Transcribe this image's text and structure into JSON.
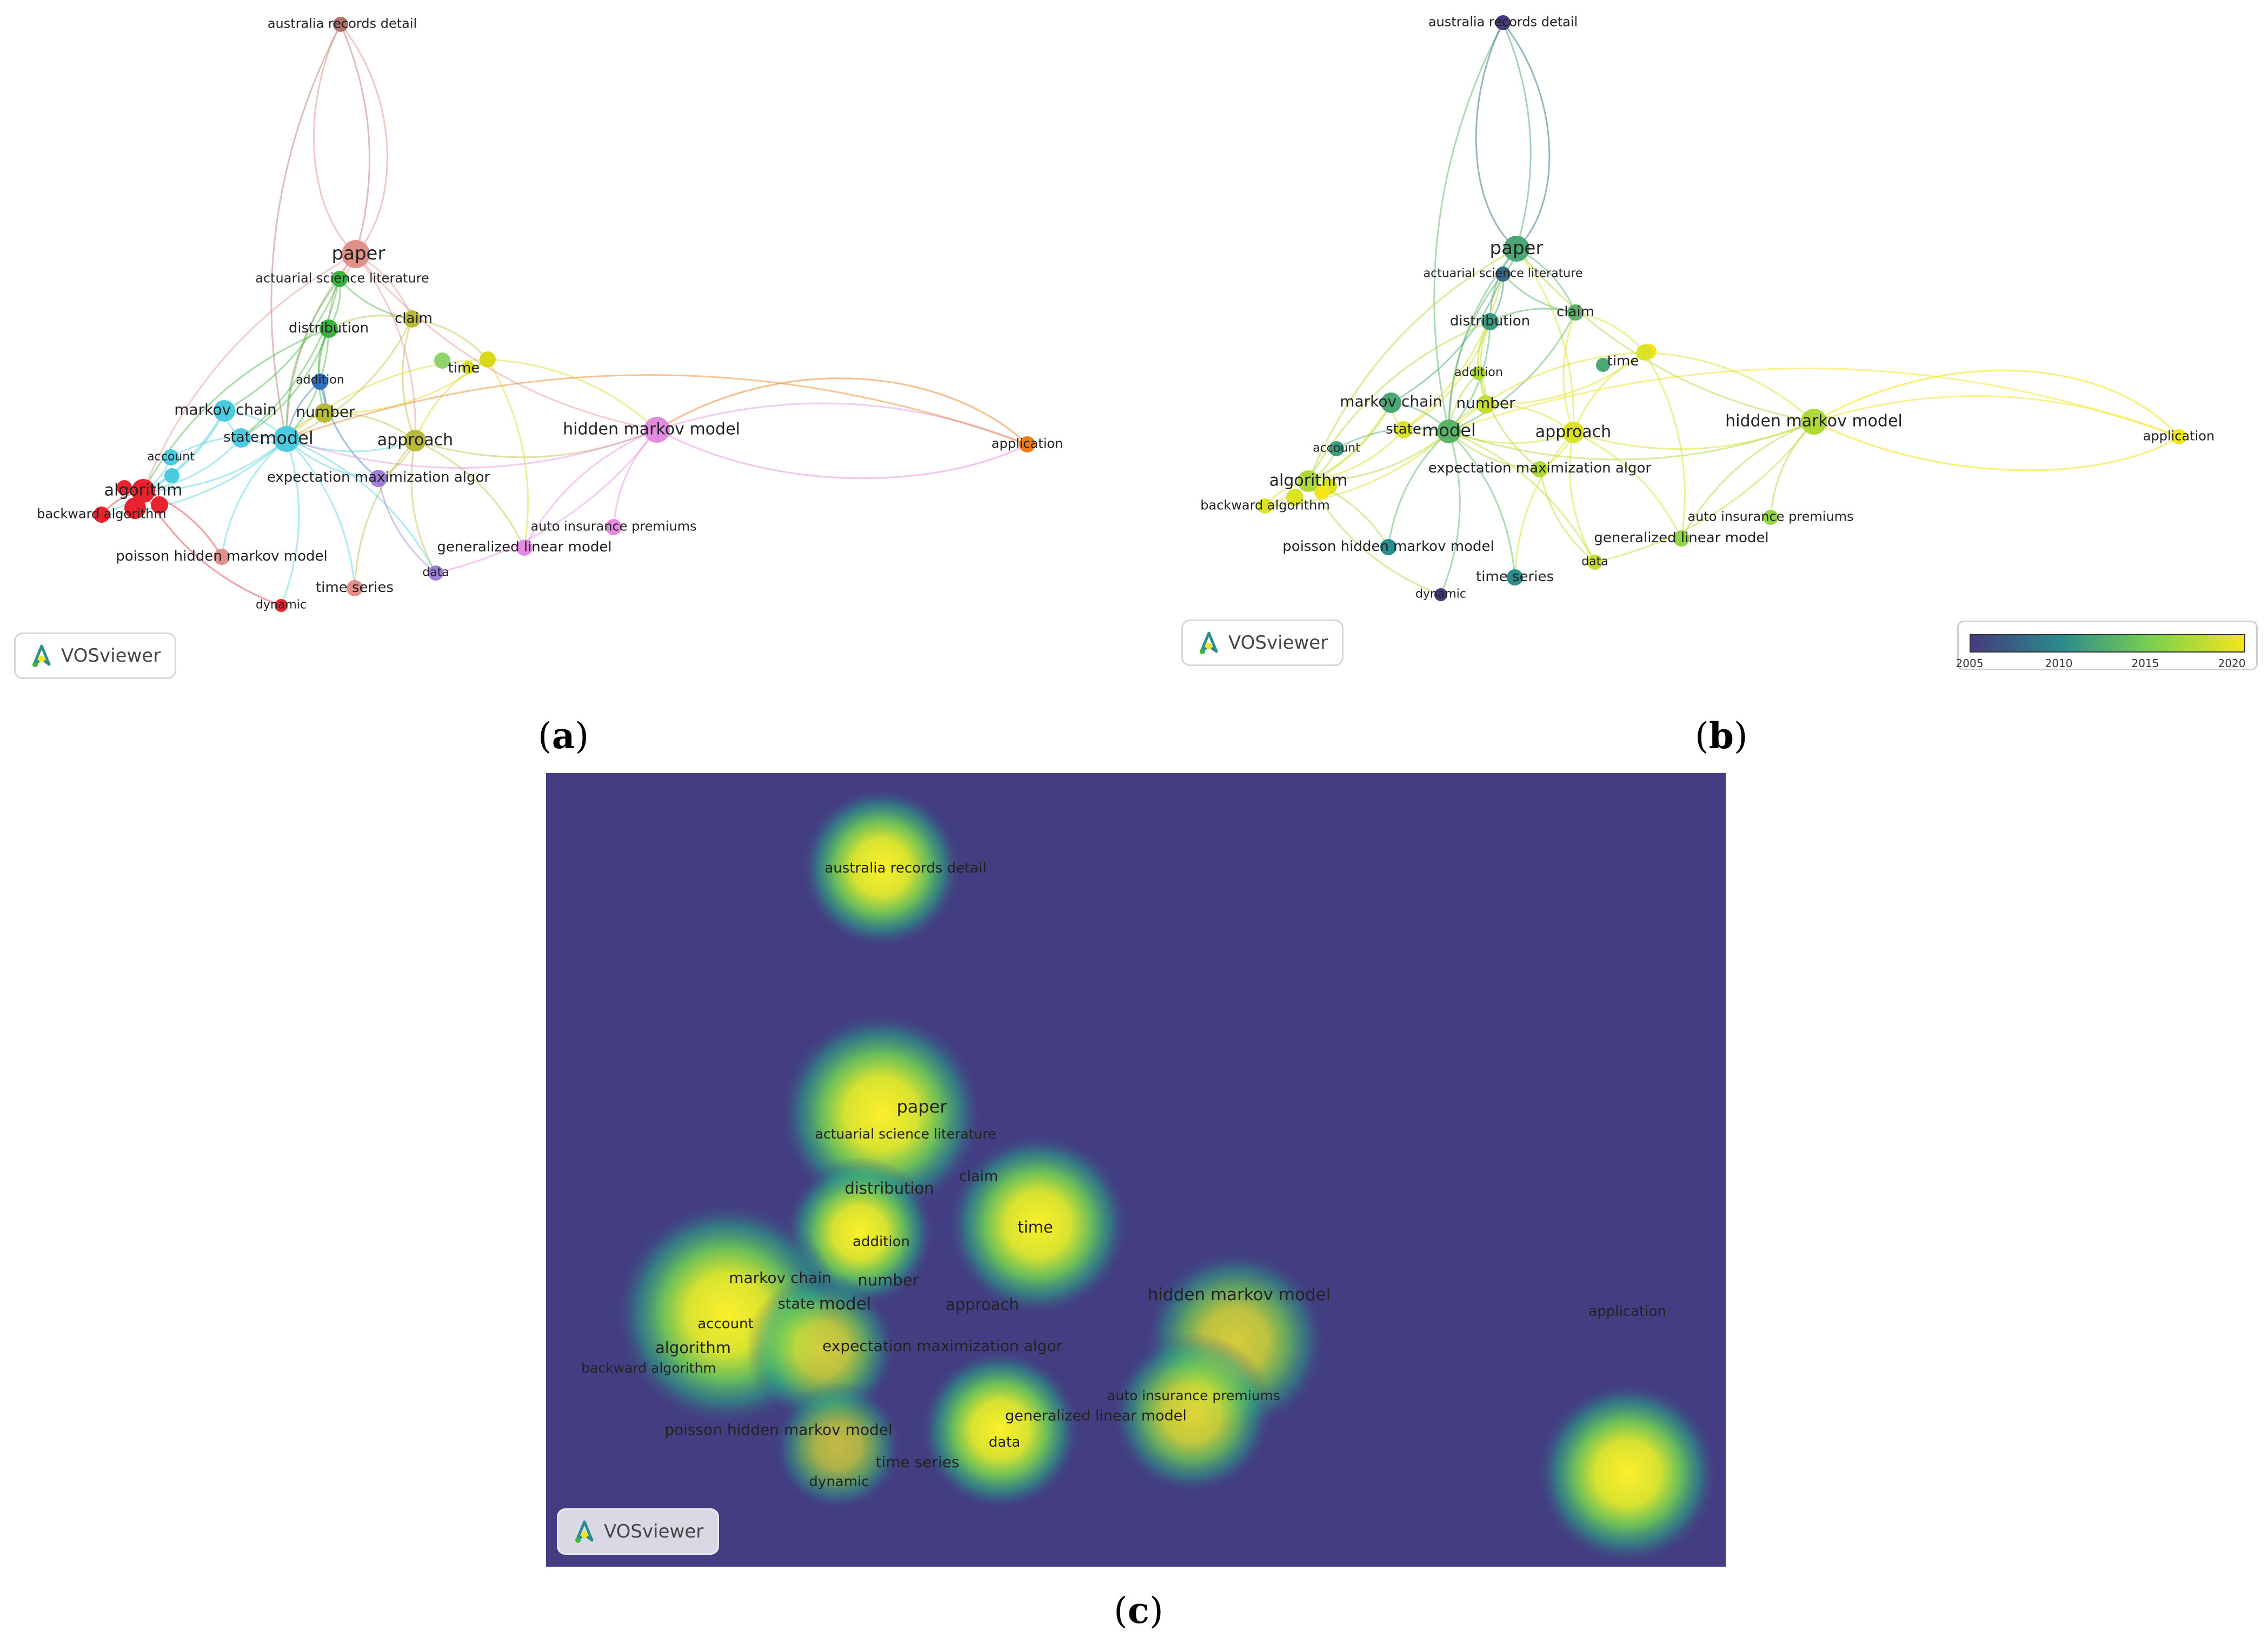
{
  "panels": [
    {
      "id": "a",
      "caption_label": "a",
      "badge": "VOSviewer"
    },
    {
      "id": "b",
      "caption_label": "b",
      "badge": "VOSviewer",
      "scale": {
        "ticks": [
          "2005",
          "2010",
          "2015",
          "2020"
        ],
        "colors": [
          "#453a7e",
          "#2a8c8c",
          "#7dd04e",
          "#f4e61a"
        ]
      }
    },
    {
      "id": "c",
      "caption_label": "c",
      "badge": "VOSviewer",
      "background": "#433d82"
    }
  ],
  "terms": [
    "australia records detail",
    "paper",
    "actuarial science literature",
    "distribution",
    "claim",
    "time",
    "addition",
    "markov chain",
    "number",
    "state",
    "model",
    "approach",
    "hidden markov model",
    "application",
    "account",
    "algorithm",
    "backward algorithm",
    "expectation maximization algor",
    "auto insurance premiums",
    "poisson hidden markov model",
    "generalized linear model",
    "data",
    "time series",
    "dynamic"
  ],
  "network_a": {
    "cluster_colors": {
      "red": "#e8222e",
      "salmon": "#e3908a",
      "green": "#3bb33b",
      "blue": "#2f70c4",
      "cyan": "#4ccbe0",
      "olive": "#b9b93a",
      "yellow": "#d8d81c",
      "purple": "#9f7ed6",
      "pink": "#e48ae0",
      "orange": "#ee7d1a",
      "brown": "#b2706a",
      "lightgreen": "#8fd36a"
    }
  },
  "overlay_b": {
    "years": {
      "australia records detail": 2005,
      "paper": 2012,
      "actuarial science literature": 2008,
      "distribution": 2011,
      "claim": 2013,
      "time": 2019,
      "addition": 2017,
      "markov chain": 2012,
      "number": 2018,
      "state": 2019,
      "model": 2013,
      "approach": 2019,
      "hidden markov model": 2017,
      "application": 2020,
      "account": 2011,
      "algorithm": 2017,
      "backward algorithm": 2019,
      "expectation maximization algor": 2017,
      "auto insurance premiums": 2016,
      "poisson hidden markov model": 2010,
      "generalized linear model": 2016,
      "data": 2018,
      "time series": 2010,
      "dynamic": 2005
    }
  },
  "density_c": {
    "hot_terms": [
      "australia records detail",
      "paper",
      "actuarial science literature",
      "distribution",
      "addition",
      "time",
      "algorithm",
      "account",
      "backward algorithm",
      "data",
      "application"
    ]
  }
}
